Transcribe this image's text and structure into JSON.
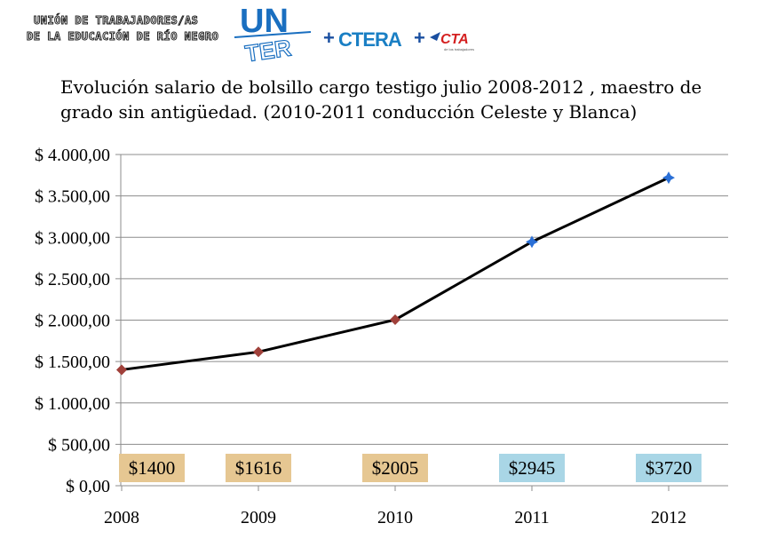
{
  "header": {
    "org_line_1": "UNIÓN DE TRABAJADORES/AS",
    "org_line_2": "DE LA EDUCACIÓN DE RÍO NEGRO",
    "logo_unter_top": "UN",
    "logo_unter_bottom": "TER",
    "plus": "+",
    "logo_ctera": "CTERA",
    "logo_cta": "CTA",
    "logo_cta_sub": "de los trabajadores"
  },
  "chart_data": {
    "type": "line",
    "title": "Evolución salario de bolsillo cargo testigo julio 2008-2012 , maestro de grado sin antigüedad. (2010-2011 conducción Celeste y Blanca)",
    "categories": [
      "2008",
      "2009",
      "2010",
      "2011",
      "2012"
    ],
    "values": [
      1400,
      1616,
      2005,
      2945,
      3720
    ],
    "data_labels": [
      "$1400",
      "$1616",
      "$2005",
      "$2945",
      "$3720"
    ],
    "ylim": [
      0,
      4000
    ],
    "yticks": [
      {
        "value": 0,
        "label": "$ 0,00"
      },
      {
        "value": 500,
        "label": "$ 500,00"
      },
      {
        "value": 1000,
        "label": "$ 1.000,00"
      },
      {
        "value": 1500,
        "label": "$ 1.500,00"
      },
      {
        "value": 2000,
        "label": "$ 2.000,00"
      },
      {
        "value": 2500,
        "label": "$ 2.500,00"
      },
      {
        "value": 3000,
        "label": "$ 3.000,00"
      },
      {
        "value": 3500,
        "label": "$ 3.500,00"
      },
      {
        "value": 4000,
        "label": "$ 4.000,00"
      }
    ],
    "grid": true,
    "legend": "none",
    "line_color": "#000000",
    "marker_colors": [
      "#a0403a",
      "#a0403a",
      "#a0403a",
      "#2a6fd6",
      "#2a6fd6"
    ],
    "label_backgrounds": [
      "#e6c792",
      "#e6c792",
      "#e6c792",
      "#a9d6e6",
      "#a9d6e6"
    ]
  }
}
